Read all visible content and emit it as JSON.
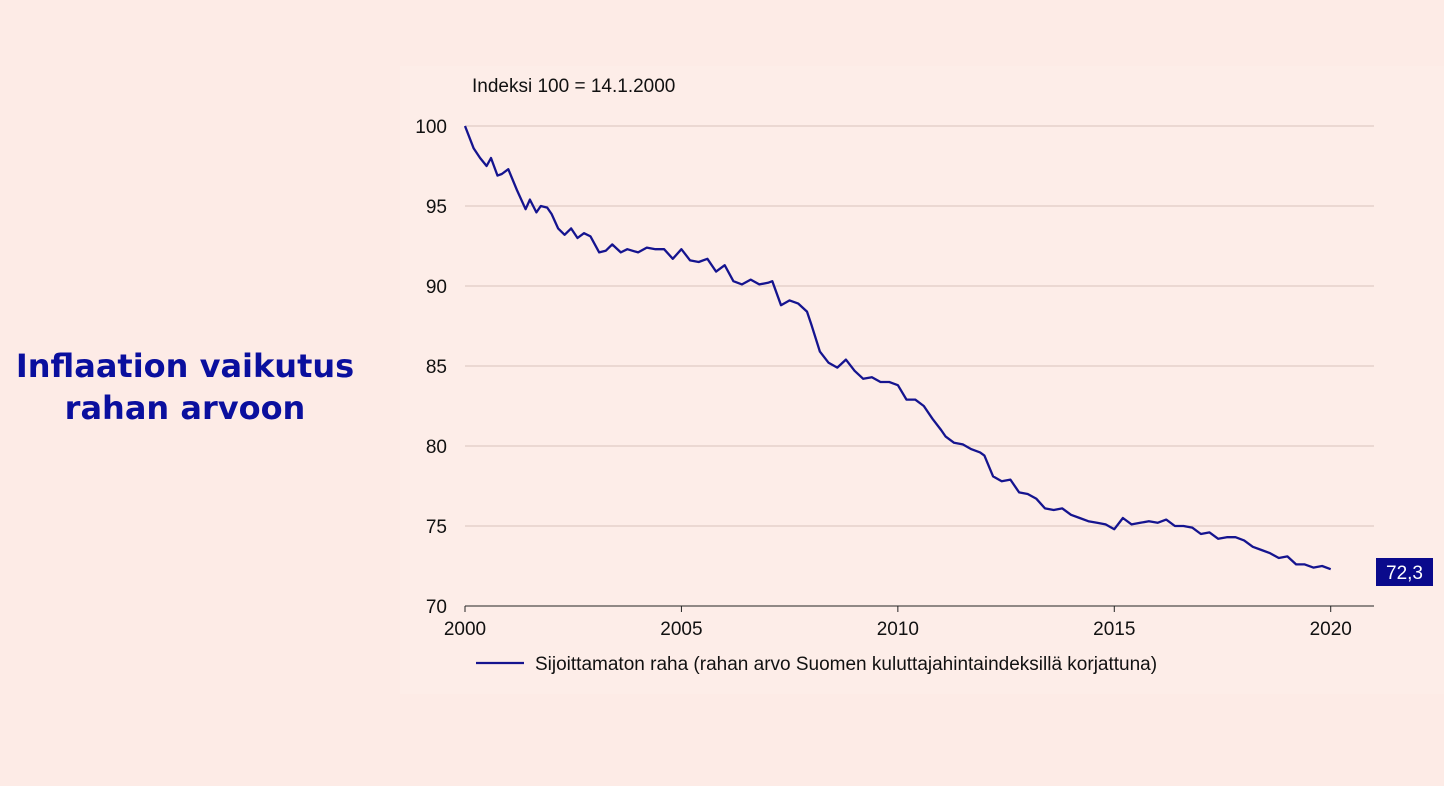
{
  "headline": {
    "line1": "Inflaation vaikutus",
    "line2": "rahan arvoon"
  },
  "chart_data": {
    "type": "line",
    "title": "",
    "note": "Indeksi 100 = 14.1.2000",
    "xlabel": "",
    "ylabel": "",
    "xlim": [
      2000,
      2021
    ],
    "ylim": [
      70,
      100
    ],
    "x_ticks": [
      "2000",
      "2005",
      "2010",
      "2015",
      "2020"
    ],
    "y_ticks": [
      "100",
      "95",
      "90",
      "85",
      "80",
      "75",
      "70"
    ],
    "grid": true,
    "legend_position": "bottom",
    "end_label": "72,3",
    "colors": {
      "line": "#15148f",
      "grid": "#d9c2bd",
      "end_label_bg": "#0a0a8c"
    },
    "series": [
      {
        "name": "Sijoittamaton raha (rahan arvo Suomen kuluttajahintaindeksillä korjattuna)",
        "x": [
          2000.0,
          2000.2,
          2000.35,
          2000.5,
          2000.6,
          2000.75,
          2000.85,
          2001.0,
          2001.2,
          2001.4,
          2001.5,
          2001.65,
          2001.75,
          2001.9,
          2002.0,
          2002.15,
          2002.3,
          2002.45,
          2002.6,
          2002.75,
          2002.9,
          2003.1,
          2003.25,
          2003.4,
          2003.6,
          2003.75,
          2004.0,
          2004.2,
          2004.4,
          2004.6,
          2004.8,
          2005.0,
          2005.2,
          2005.4,
          2005.6,
          2005.8,
          2006.0,
          2006.2,
          2006.4,
          2006.6,
          2006.8,
          2007.0,
          2007.1,
          2007.3,
          2007.5,
          2007.7,
          2007.9,
          2008.0,
          2008.2,
          2008.4,
          2008.6,
          2008.8,
          2009.0,
          2009.2,
          2009.4,
          2009.6,
          2009.8,
          2010.0,
          2010.2,
          2010.4,
          2010.6,
          2010.8,
          2011.0,
          2011.1,
          2011.3,
          2011.5,
          2011.7,
          2011.9,
          2012.0,
          2012.2,
          2012.4,
          2012.6,
          2012.8,
          2013.0,
          2013.2,
          2013.4,
          2013.6,
          2013.8,
          2014.0,
          2014.2,
          2014.4,
          2014.6,
          2014.8,
          2015.0,
          2015.2,
          2015.4,
          2015.6,
          2015.8,
          2016.0,
          2016.2,
          2016.4,
          2016.6,
          2016.8,
          2017.0,
          2017.2,
          2017.4,
          2017.6,
          2017.8,
          2018.0,
          2018.2,
          2018.4,
          2018.6,
          2018.8,
          2019.0,
          2019.2,
          2019.4,
          2019.6,
          2019.8,
          2020.0
        ],
        "values": [
          100.0,
          98.6,
          98.0,
          97.5,
          98.0,
          96.9,
          97.0,
          97.3,
          96.0,
          94.8,
          95.4,
          94.6,
          95.0,
          94.9,
          94.5,
          93.6,
          93.2,
          93.6,
          93.0,
          93.3,
          93.1,
          92.1,
          92.2,
          92.6,
          92.1,
          92.3,
          92.1,
          92.4,
          92.3,
          92.3,
          91.7,
          92.3,
          91.6,
          91.5,
          91.7,
          90.9,
          91.3,
          90.3,
          90.1,
          90.4,
          90.1,
          90.2,
          90.3,
          88.8,
          89.1,
          88.9,
          88.4,
          87.6,
          85.9,
          85.2,
          84.9,
          85.4,
          84.7,
          84.2,
          84.3,
          84.0,
          84.0,
          83.8,
          82.9,
          82.9,
          82.5,
          81.7,
          81.0,
          80.6,
          80.2,
          80.1,
          79.8,
          79.6,
          79.4,
          78.1,
          77.8,
          77.9,
          77.1,
          77.0,
          76.7,
          76.1,
          76.0,
          76.1,
          75.7,
          75.5,
          75.3,
          75.2,
          75.1,
          74.8,
          75.5,
          75.1,
          75.2,
          75.3,
          75.2,
          75.4,
          75.0,
          75.0,
          74.9,
          74.5,
          74.6,
          74.2,
          74.3,
          74.3,
          74.1,
          73.7,
          73.5,
          73.3,
          73.0,
          73.1,
          72.6,
          72.6,
          72.4,
          72.5,
          72.3
        ]
      }
    ]
  }
}
